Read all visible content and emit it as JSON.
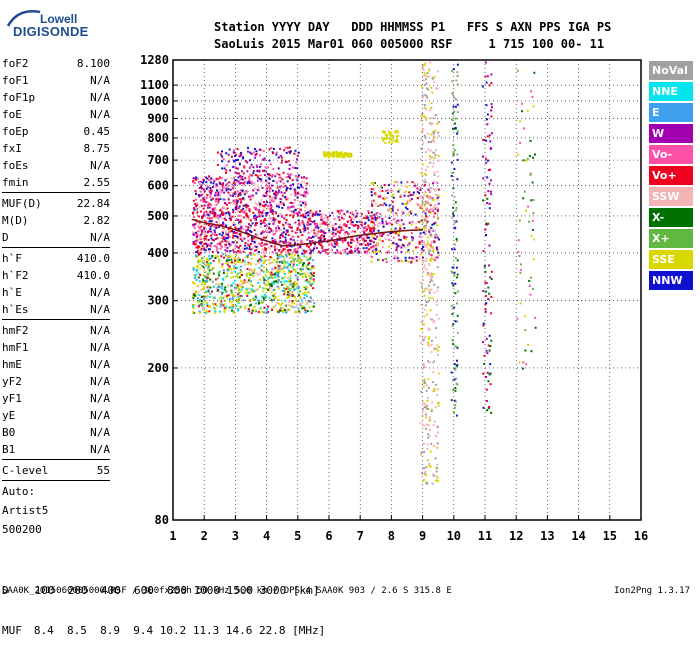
{
  "logo": {
    "line1": "Lowell",
    "line2": "DIGISONDE"
  },
  "header": {
    "line1": "Station YYYY DAY   DDD HHMMSS P1   FFS S AXN PPS IGA PS",
    "line2": "SaoLuis 2015 Mar01 060 005000 RSF     1 715 100 00- 11"
  },
  "params": {
    "group1": [
      {
        "k": "foF2",
        "v": "8.100"
      },
      {
        "k": "foF1",
        "v": "N/A"
      },
      {
        "k": "foF1p",
        "v": "N/A"
      },
      {
        "k": "foE",
        "v": "N/A"
      },
      {
        "k": "foEp",
        "v": "0.45"
      },
      {
        "k": "fxI",
        "v": "8.75"
      },
      {
        "k": "foEs",
        "v": "N/A"
      },
      {
        "k": "fmin",
        "v": "2.55"
      }
    ],
    "group2": [
      {
        "k": "MUF(D)",
        "v": "22.84"
      },
      {
        "k": "M(D)",
        "v": "2.82"
      },
      {
        "k": "D",
        "v": "N/A"
      }
    ],
    "group3": [
      {
        "k": "h`F",
        "v": "410.0"
      },
      {
        "k": "h`F2",
        "v": "410.0"
      },
      {
        "k": "h`E",
        "v": "N/A"
      },
      {
        "k": "h`Es",
        "v": "N/A"
      }
    ],
    "group4": [
      {
        "k": "hmF2",
        "v": "N/A"
      },
      {
        "k": "hmF1",
        "v": "N/A"
      },
      {
        "k": "hmE",
        "v": "N/A"
      },
      {
        "k": "yF2",
        "v": "N/A"
      },
      {
        "k": "yF1",
        "v": "N/A"
      },
      {
        "k": "yE",
        "v": "N/A"
      },
      {
        "k": "B0",
        "v": "N/A"
      },
      {
        "k": "B1",
        "v": "N/A"
      }
    ],
    "group5": [
      {
        "k": "C-level",
        "v": "55"
      }
    ],
    "tail": [
      "Auto:",
      "Artist5",
      "500200"
    ]
  },
  "legend": [
    {
      "label": "NoVal",
      "color": "#a0a0a0"
    },
    {
      "label": "NNE",
      "color": "#00e5ee"
    },
    {
      "label": "E",
      "color": "#3fa0f0"
    },
    {
      "label": "W",
      "color": "#a000b0"
    },
    {
      "label": "Vo-",
      "color": "#ff50a8"
    },
    {
      "label": "Vo+",
      "color": "#ee0020"
    },
    {
      "label": "SSW",
      "color": "#f4b4b4"
    },
    {
      "label": "X-",
      "color": "#007000"
    },
    {
      "label": "X+",
      "color": "#60b840"
    },
    {
      "label": "SSE",
      "color": "#d8d800"
    },
    {
      "label": "NNW",
      "color": "#1010d0"
    }
  ],
  "chart_data": {
    "type": "scatter",
    "x_range": [
      1,
      16
    ],
    "x_ticks": [
      "1",
      "2",
      "3",
      "4",
      "5",
      "6",
      "7",
      "8",
      "9",
      "10",
      "11",
      "12",
      "13",
      "14",
      "15",
      "16"
    ],
    "y_scale": "log",
    "y_range": [
      80,
      1280
    ],
    "y_ticks": [
      "80",
      "200",
      "300",
      "400",
      "500",
      "600",
      "700",
      "800",
      "900",
      "1000",
      "1100",
      "1280"
    ],
    "trace_curve": {
      "color": "#7a1010",
      "points": [
        [
          1.6,
          490
        ],
        [
          2.0,
          480
        ],
        [
          2.5,
          472
        ],
        [
          3.0,
          460
        ],
        [
          3.5,
          445
        ],
        [
          4.0,
          430
        ],
        [
          4.5,
          418
        ],
        [
          5.0,
          420
        ],
        [
          5.5,
          425
        ],
        [
          6.0,
          430
        ],
        [
          6.5,
          438
        ],
        [
          7.0,
          445
        ],
        [
          7.5,
          450
        ],
        [
          8.0,
          455
        ],
        [
          8.5,
          458
        ],
        [
          9.0,
          460
        ]
      ]
    },
    "echo_regions": [
      {
        "fmin": 1.6,
        "fmax": 5.5,
        "hmin": 280,
        "hmax": 400,
        "n": 900,
        "colors": [
          "#d8d800",
          "#d8d800",
          "#d8d800",
          "#60b840",
          "#007000",
          "#f4b4b4",
          "#ee0020",
          "#3fa0f0",
          "#00e5ee"
        ]
      },
      {
        "fmin": 1.6,
        "fmax": 7.5,
        "hmin": 400,
        "hmax": 520,
        "n": 1100,
        "colors": [
          "#ee0020",
          "#ff50a8",
          "#a000b0",
          "#ee0020",
          "#1010d0",
          "#f4b4b4"
        ]
      },
      {
        "fmin": 1.6,
        "fmax": 5.3,
        "hmin": 520,
        "hmax": 640,
        "n": 500,
        "colors": [
          "#a000b0",
          "#ff50a8",
          "#ee0020",
          "#1010d0",
          "#f4b4b4"
        ]
      },
      {
        "fmin": 2.4,
        "fmax": 5.0,
        "hmin": 640,
        "hmax": 760,
        "n": 150,
        "colors": [
          "#a000b0",
          "#ff50a8",
          "#ee0020",
          "#1010d0"
        ]
      },
      {
        "fmin": 5.8,
        "fmax": 6.7,
        "hmin": 715,
        "hmax": 740,
        "n": 80,
        "colors": [
          "#d8d800"
        ]
      },
      {
        "fmin": 7.3,
        "fmax": 9.5,
        "hmin": 380,
        "hmax": 620,
        "n": 400,
        "colors": [
          "#ee0020",
          "#d8d800",
          "#a000b0",
          "#ff50a8",
          "#f4b4b4",
          "#1010d0"
        ]
      },
      {
        "fmin": 7.7,
        "fmax": 8.2,
        "hmin": 780,
        "hmax": 840,
        "n": 50,
        "colors": [
          "#d8d800"
        ]
      },
      {
        "fmin": 8.9,
        "fmax": 9.5,
        "hmin": 100,
        "hmax": 1280,
        "n": 400,
        "colors": [
          "#f4b4b4",
          "#f4b4b4",
          "#d8d800",
          "#a0a0a0"
        ]
      },
      {
        "fmin": 9.9,
        "fmax": 10.1,
        "hmin": 150,
        "hmax": 1280,
        "n": 120,
        "colors": [
          "#a0a0a0",
          "#60b840",
          "#007000",
          "#1010d0"
        ]
      },
      {
        "fmin": 10.9,
        "fmax": 11.2,
        "hmin": 150,
        "hmax": 1280,
        "n": 100,
        "colors": [
          "#a000b0",
          "#007000",
          "#ee0020",
          "#1010d0"
        ]
      },
      {
        "fmin": 12.0,
        "fmax": 12.6,
        "hmin": 200,
        "hmax": 1280,
        "n": 60,
        "colors": [
          "#007000",
          "#60b840",
          "#ff50a8",
          "#d8d800"
        ]
      }
    ]
  },
  "dtable": {
    "row1_label": "D",
    "row1_values": "100  200  400  600  800 1000 1500 3000 [km]",
    "row2_label": "MUF",
    "row2_values": "8.4  8.5  8.9  9.4 10.2 11.3 14.6 22.8 [MHz]"
  },
  "footer": {
    "left": "SAA0K_2015060005000.RSF / 300fx256h 50 kHz 5.0 km / DPS-4 SAA0K 903 / 2.6 S 315.8 E",
    "right": "Ion2Png 1.3.17"
  }
}
